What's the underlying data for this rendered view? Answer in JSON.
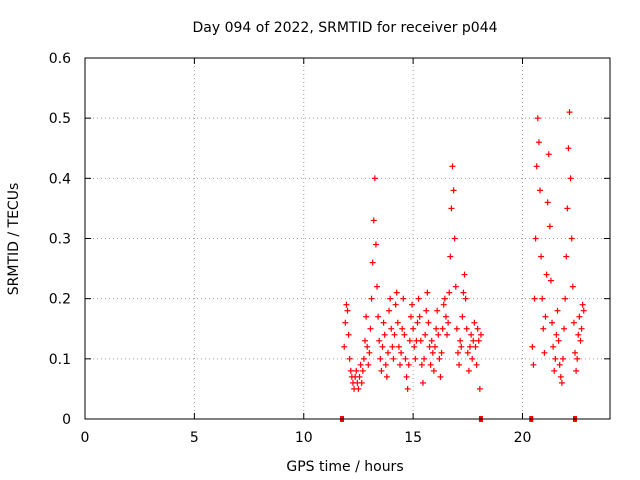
{
  "chart_data": {
    "type": "scatter",
    "title": "Day 094 of 2022, SRMTID for receiver p044",
    "xlabel": "GPS time / hours",
    "ylabel": "SRMTID / TECUs",
    "xlim": [
      0,
      24
    ],
    "ylim": [
      0,
      0.6
    ],
    "xticks": [
      0,
      5,
      10,
      15,
      20
    ],
    "yticks": [
      0,
      0.1,
      0.2,
      0.3,
      0.4,
      0.5,
      0.6
    ],
    "xtick_labels": [
      "0",
      "5",
      "10",
      "15",
      "20"
    ],
    "ytick_labels": [
      "0",
      "0.1",
      "0.2",
      "0.3",
      "0.4",
      "0.5",
      "0.6"
    ],
    "grid": true,
    "marker": "+",
    "series_color": "#ff0000",
    "series": [
      {
        "name": "SRMTID",
        "x": [
          11.85,
          11.9,
          11.95,
          12.0,
          12.05,
          12.1,
          12.15,
          12.2,
          12.25,
          12.3,
          12.35,
          12.4,
          12.45,
          12.5,
          12.55,
          12.6,
          12.65,
          12.7,
          12.75,
          12.8,
          12.85,
          12.9,
          12.95,
          13.0,
          13.05,
          13.1,
          13.15,
          13.2,
          13.25,
          13.3,
          13.35,
          13.4,
          13.45,
          13.5,
          13.55,
          13.6,
          13.65,
          13.7,
          13.75,
          13.8,
          13.85,
          13.9,
          13.95,
          14.0,
          14.05,
          14.1,
          14.15,
          14.2,
          14.25,
          14.3,
          14.35,
          14.4,
          14.45,
          14.5,
          14.55,
          14.6,
          14.65,
          14.7,
          14.75,
          14.8,
          14.85,
          14.9,
          14.95,
          15.0,
          15.05,
          15.1,
          15.15,
          15.2,
          15.25,
          15.3,
          15.35,
          15.4,
          15.45,
          15.5,
          15.55,
          15.6,
          15.65,
          15.7,
          15.75,
          15.8,
          15.85,
          15.9,
          15.95,
          16.0,
          16.05,
          16.1,
          16.15,
          16.2,
          16.25,
          16.3,
          16.35,
          16.4,
          16.45,
          16.5,
          16.55,
          16.6,
          16.65,
          16.7,
          16.75,
          16.8,
          16.85,
          16.9,
          16.95,
          17.0,
          17.05,
          17.1,
          17.15,
          17.2,
          17.25,
          17.3,
          17.35,
          17.4,
          17.45,
          17.5,
          17.55,
          17.6,
          17.65,
          17.7,
          17.75,
          17.8,
          17.85,
          17.9,
          17.95,
          18.0,
          18.05,
          18.1,
          20.45,
          20.5,
          20.55,
          20.6,
          20.65,
          20.7,
          20.75,
          20.8,
          20.85,
          20.9,
          20.95,
          21.0,
          21.05,
          21.1,
          21.15,
          21.2,
          21.25,
          21.3,
          21.35,
          21.4,
          21.45,
          21.5,
          21.55,
          21.6,
          21.65,
          21.7,
          21.75,
          21.8,
          21.85,
          21.9,
          21.95,
          22.0,
          22.05,
          22.1,
          22.15,
          22.2,
          22.25,
          22.3,
          22.35,
          22.4,
          22.45,
          22.5,
          22.55,
          22.6,
          22.65,
          22.7,
          22.75,
          22.8
        ],
        "y": [
          0.12,
          0.16,
          0.19,
          0.18,
          0.14,
          0.1,
          0.08,
          0.07,
          0.06,
          0.05,
          0.07,
          0.08,
          0.06,
          0.05,
          0.07,
          0.09,
          0.06,
          0.08,
          0.1,
          0.13,
          0.17,
          0.12,
          0.09,
          0.11,
          0.15,
          0.2,
          0.26,
          0.33,
          0.4,
          0.29,
          0.22,
          0.17,
          0.13,
          0.1,
          0.08,
          0.12,
          0.16,
          0.14,
          0.09,
          0.07,
          0.11,
          0.18,
          0.2,
          0.15,
          0.12,
          0.1,
          0.14,
          0.19,
          0.21,
          0.16,
          0.12,
          0.09,
          0.11,
          0.15,
          0.2,
          0.14,
          0.1,
          0.07,
          0.05,
          0.09,
          0.13,
          0.17,
          0.19,
          0.15,
          0.12,
          0.1,
          0.13,
          0.16,
          0.2,
          0.17,
          0.13,
          0.09,
          0.06,
          0.1,
          0.14,
          0.18,
          0.21,
          0.16,
          0.12,
          0.09,
          0.13,
          0.11,
          0.08,
          0.12,
          0.15,
          0.18,
          0.14,
          0.1,
          0.07,
          0.11,
          0.15,
          0.19,
          0.2,
          0.17,
          0.14,
          0.16,
          0.21,
          0.27,
          0.35,
          0.42,
          0.38,
          0.3,
          0.22,
          0.15,
          0.11,
          0.09,
          0.13,
          0.12,
          0.17,
          0.21,
          0.24,
          0.2,
          0.15,
          0.11,
          0.08,
          0.12,
          0.14,
          0.1,
          0.13,
          0.16,
          0.12,
          0.09,
          0.15,
          0.13,
          0.05,
          0.14,
          0.12,
          0.09,
          0.2,
          0.3,
          0.42,
          0.5,
          0.46,
          0.38,
          0.27,
          0.2,
          0.15,
          0.11,
          0.17,
          0.24,
          0.36,
          0.44,
          0.32,
          0.23,
          0.16,
          0.12,
          0.08,
          0.1,
          0.14,
          0.18,
          0.13,
          0.09,
          0.07,
          0.06,
          0.1,
          0.15,
          0.2,
          0.27,
          0.35,
          0.45,
          0.51,
          0.4,
          0.3,
          0.22,
          0.16,
          0.11,
          0.08,
          0.1,
          0.14,
          0.17,
          0.13,
          0.15,
          0.19,
          0.18
        ]
      }
    ],
    "gap_markers_x": [
      11.75,
      18.1,
      20.4,
      22.4
    ]
  }
}
